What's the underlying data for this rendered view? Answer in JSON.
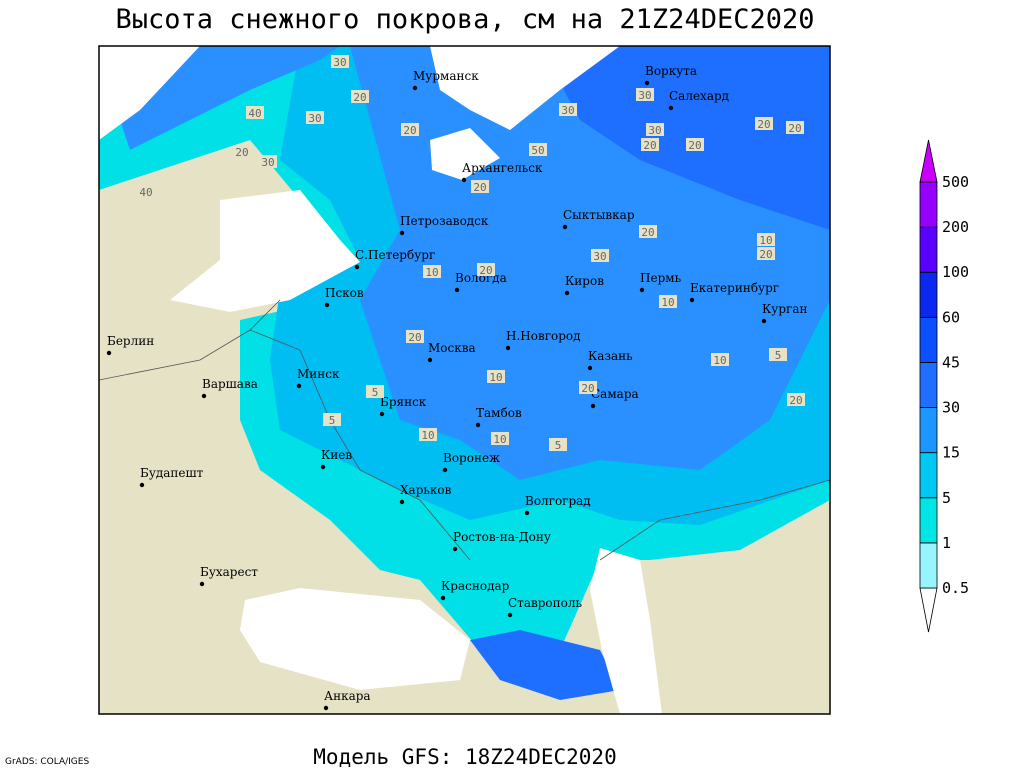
{
  "header": {
    "title": "Высота снежного покрова, см на 21Z24DEC2020"
  },
  "footer": {
    "model": "Модель GFS: 18Z24DEC2020",
    "credit": "GrADS: COLA/IGES"
  },
  "cities": [
    "Мурманск",
    "Воркута",
    "Салехард",
    "Архангельск",
    "Петрозаводск",
    "Сыктывкар",
    "С.Петербург",
    "Вологда",
    "Киров",
    "Пермь",
    "Екатеринбург",
    "Курган",
    "Псков",
    "Берлин",
    "Н.Новгород",
    "Москва",
    "Казань",
    "Минск",
    "Варшава",
    "Самара",
    "Брянск",
    "Тамбов",
    "Киев",
    "Воронеж",
    "Будапешт",
    "Харьков",
    "Волгоград",
    "Ростов-на-Дону",
    "Бухарест",
    "Краснодар",
    "Ставрополь",
    "Анкара"
  ],
  "contour_labels": [
    30,
    40,
    20,
    30,
    20,
    30,
    40,
    20,
    50,
    20,
    30,
    30,
    20,
    30,
    20,
    20,
    20,
    20,
    10,
    20,
    10,
    20,
    20,
    10,
    10,
    5,
    5,
    10,
    10,
    5,
    20,
    10,
    5,
    20,
    30
  ],
  "legend": {
    "levels": [
      0.5,
      1,
      5,
      15,
      30,
      45,
      60,
      100,
      200,
      500
    ],
    "colors": [
      "#ffffff",
      "#96f5ff",
      "#00e6e6",
      "#00c8f5",
      "#1e96ff",
      "#1e6eff",
      "#0a50ff",
      "#0a28f0",
      "#5a00ff",
      "#9600ff",
      "#c800ff"
    ]
  }
}
